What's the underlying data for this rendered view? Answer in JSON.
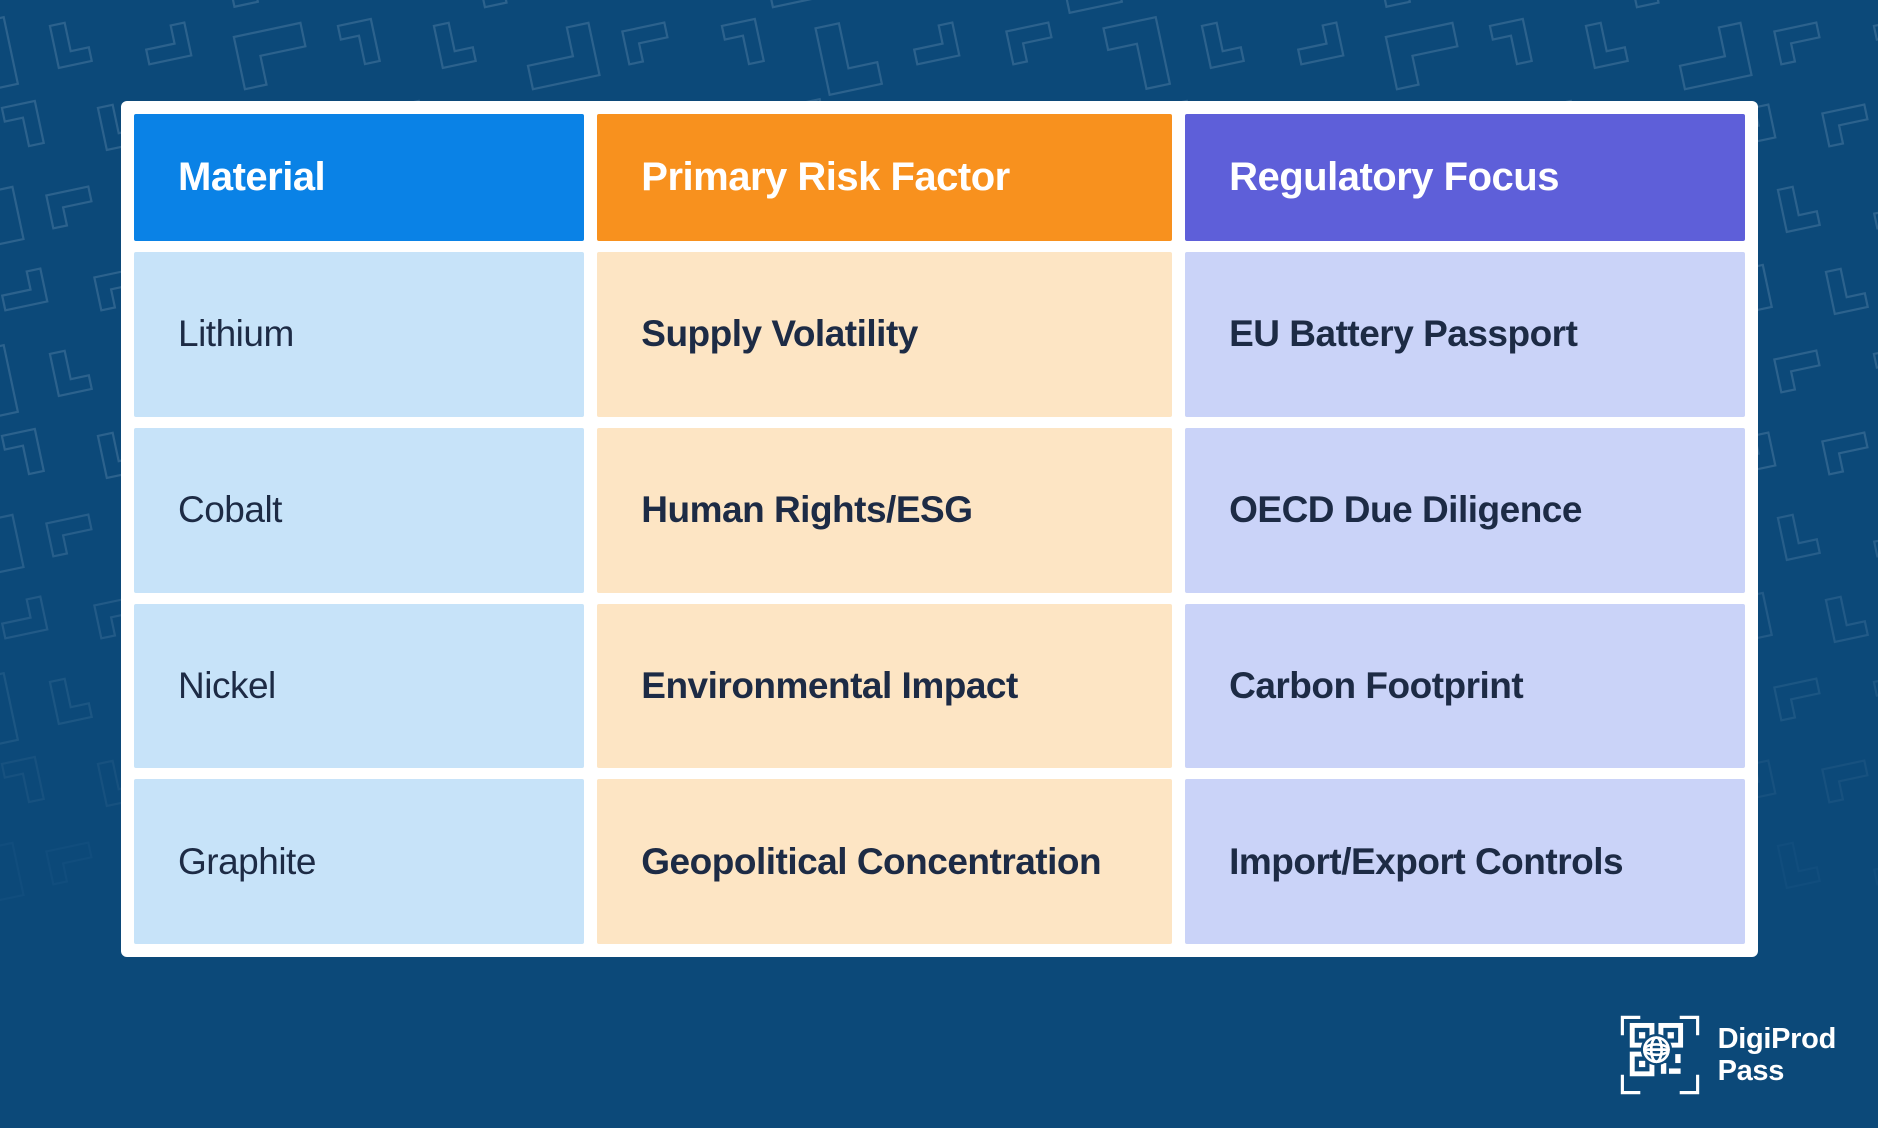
{
  "table": {
    "columns": [
      {
        "label": "Material",
        "header_color": "#0a82e6",
        "cell_color": "#c7e3f9"
      },
      {
        "label": "Primary Risk Factor",
        "header_color": "#f8911e",
        "cell_color": "#fde5c4"
      },
      {
        "label": "Regulatory Focus",
        "header_color": "#5e5fd9",
        "cell_color": "#cad3f8"
      }
    ],
    "rows": [
      {
        "material": "Lithium",
        "risk": "Supply Volatility",
        "regulatory": "EU Battery Passport"
      },
      {
        "material": "Cobalt",
        "risk": "Human Rights/ESG",
        "regulatory": "OECD Due Diligence"
      },
      {
        "material": "Nickel",
        "risk": "Environmental Impact",
        "regulatory": "Carbon Footprint"
      },
      {
        "material": "Graphite",
        "risk": "Geopolitical Concentration",
        "regulatory": "Import/Export Controls"
      }
    ]
  },
  "brand": {
    "line1": "DigiProd",
    "line2": "Pass",
    "icon": "qr-globe-icon"
  },
  "colors": {
    "background": "#0c4979",
    "pattern_stroke": "#cfe4f5",
    "card_background": "#ffffff",
    "cell_text": "#1d2b45",
    "header_text": "#ffffff",
    "brand_text": "#ffffff"
  }
}
